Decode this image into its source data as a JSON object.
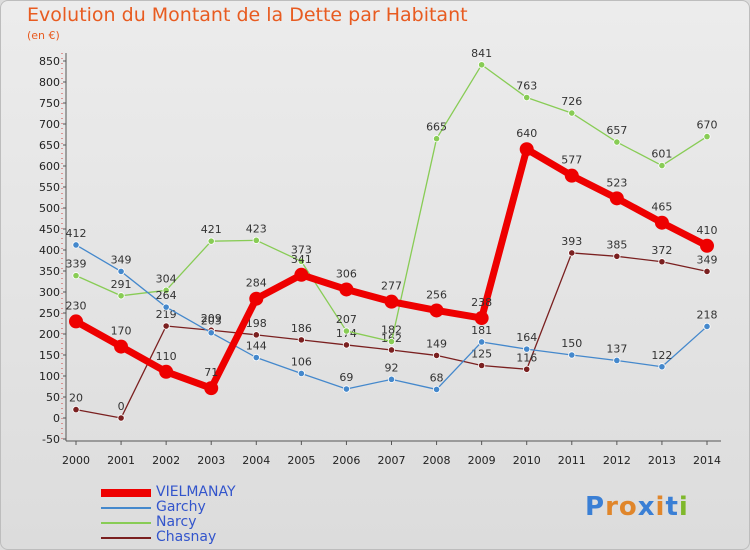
{
  "title": "Evolution du Montant de la Dette par Habitant",
  "unit": "(en €)",
  "logo": {
    "text": "Proxiti",
    "letters": [
      "P",
      "r",
      "o",
      "x",
      "i",
      "t",
      "i"
    ],
    "colors": [
      "#3a7fd5",
      "#e0862b",
      "#e0862b",
      "#3a7fd5",
      "#e0862b",
      "#3a7fd5",
      "#7fb82b"
    ]
  },
  "chart_data": {
    "type": "line",
    "x": [
      "2000",
      "2001",
      "2002",
      "2003",
      "2004",
      "2005",
      "2006",
      "2007",
      "2008",
      "2009",
      "2010",
      "2011",
      "2012",
      "2013",
      "2014"
    ],
    "ylim": [
      -50,
      850
    ],
    "yticks": [
      "850",
      "800",
      "750",
      "700",
      "650",
      "600",
      "550",
      "500",
      "450",
      "400",
      "350",
      "300",
      "250",
      "200",
      "150",
      "100",
      "50",
      "0",
      "-50"
    ],
    "grid": false,
    "legend_position": "bottom-left",
    "series": [
      {
        "name": "Chasnay",
        "color": "#7a2020",
        "values": [
          20,
          0,
          219,
          209,
          198,
          186,
          174,
          162,
          149,
          125,
          116,
          393,
          385,
          372,
          349
        ],
        "labels": [
          "20",
          "0",
          "219",
          "209",
          "198",
          "186",
          "174",
          "162",
          "149",
          "125",
          "116",
          "393",
          "385",
          "372",
          "349"
        ]
      },
      {
        "name": "Narcy",
        "color": "#88cc55",
        "values": [
          339,
          291,
          304,
          421,
          423,
          373,
          207,
          182,
          665,
          841,
          763,
          726,
          657,
          601,
          670
        ],
        "labels": [
          "339",
          "291",
          "304",
          "421",
          "423",
          "373",
          "207",
          "182",
          "665",
          "841",
          "763",
          "726",
          "657",
          "601",
          "670"
        ]
      },
      {
        "name": "Garchy",
        "color": "#4488cc",
        "values": [
          412,
          349,
          264,
          203,
          144,
          106,
          69,
          92,
          68,
          181,
          164,
          150,
          137,
          122,
          218
        ],
        "labels": [
          "412",
          "349",
          "264",
          "203",
          "144",
          "106",
          "69",
          "92",
          "68",
          "181",
          "164",
          "150",
          "137",
          "122",
          "218"
        ]
      },
      {
        "name": "VIELMANAY",
        "color": "#ee0000",
        "values": [
          230,
          170,
          110,
          71,
          284,
          341,
          306,
          277,
          256,
          238,
          640,
          577,
          523,
          465,
          410
        ],
        "labels": [
          "230",
          "170",
          "110",
          "71",
          "284",
          "341",
          "306",
          "277",
          "256",
          "238",
          "640",
          "577",
          "523",
          "465",
          "410"
        ]
      }
    ],
    "legend_order": [
      "VIELMANAY",
      "Garchy",
      "Narcy",
      "Chasnay"
    ]
  }
}
